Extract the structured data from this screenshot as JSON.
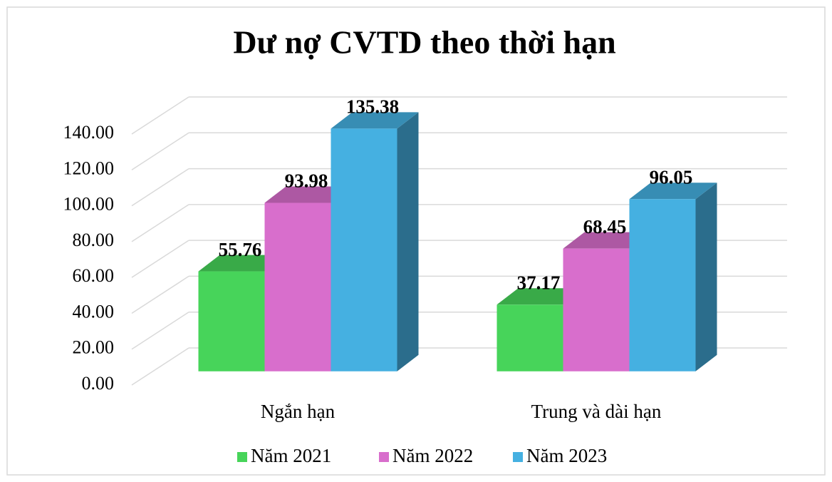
{
  "chart_data": {
    "type": "bar3d",
    "title": "Dư nợ CVTD theo thời hạn",
    "categories": [
      "Ngắn hạn",
      "Trung và dài hạn"
    ],
    "series": [
      {
        "name": "Năm 2021",
        "color": "#47d45a",
        "values": [
          55.76,
          37.17
        ]
      },
      {
        "name": "Năm 2022",
        "color": "#d86ecc",
        "values": [
          93.98,
          68.45
        ]
      },
      {
        "name": "Năm 2023",
        "color": "#45b0e1",
        "values": [
          135.38,
          96.05
        ]
      }
    ],
    "ylim": [
      0,
      140
    ],
    "yticks": [
      {
        "value": 0,
        "label": "0.00"
      },
      {
        "value": 20,
        "label": "20.00"
      },
      {
        "value": 40,
        "label": "40.00"
      },
      {
        "value": 60,
        "label": "60.00"
      },
      {
        "value": 80,
        "label": "80.00"
      },
      {
        "value": 100,
        "label": "100.00"
      },
      {
        "value": 120,
        "label": "120.00"
      },
      {
        "value": 140,
        "label": "140.00"
      }
    ],
    "grid": true,
    "legend": "bottom"
  }
}
